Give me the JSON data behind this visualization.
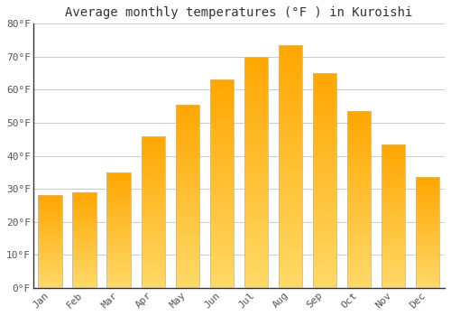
{
  "title": "Average monthly temperatures (°F ) in Kuroishi",
  "months": [
    "Jan",
    "Feb",
    "Mar",
    "Apr",
    "May",
    "Jun",
    "Jul",
    "Aug",
    "Sep",
    "Oct",
    "Nov",
    "Dec"
  ],
  "values": [
    28,
    29,
    35,
    46,
    55.5,
    63,
    70,
    73.5,
    65,
    53.5,
    43.5,
    33.5
  ],
  "bar_color_top": "#FFA500",
  "bar_color_bottom": "#FFD966",
  "ylim": [
    0,
    80
  ],
  "yticks": [
    0,
    10,
    20,
    30,
    40,
    50,
    60,
    70,
    80
  ],
  "ytick_labels": [
    "0°F",
    "10°F",
    "20°F",
    "30°F",
    "40°F",
    "50°F",
    "60°F",
    "70°F",
    "80°F"
  ],
  "background_color": "#FFFFFF",
  "grid_color": "#CCCCCC",
  "title_fontsize": 10,
  "tick_fontsize": 8,
  "bar_edge_color": "#BBBBBB",
  "figsize": [
    5.0,
    3.5
  ],
  "dpi": 100
}
